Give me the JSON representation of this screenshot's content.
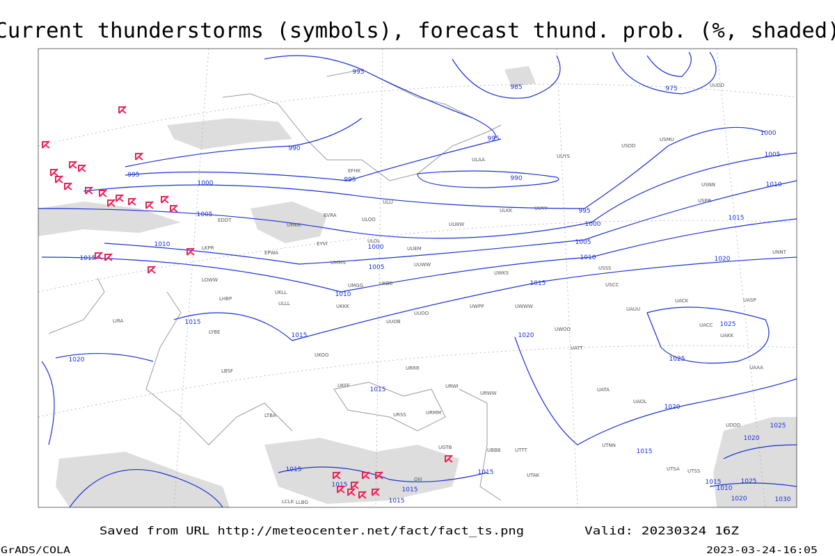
{
  "header": {
    "title": "Current thunderstorms (symbols), forecast thund. prob. (%, shaded)"
  },
  "footer": {
    "source": "Saved from URL http://meteocenter.net/fact/fact_ts.png",
    "valid": "Valid: 20230324 16Z",
    "software": "GrADS/COLA",
    "timestamp": "2023-03-24-16:05"
  },
  "isobar_labels": [
    "995",
    "985",
    "975",
    "990",
    "995",
    "995",
    "1000",
    "995",
    "990",
    "995",
    "1005",
    "1000",
    "1000",
    "1010",
    "1005",
    "1015",
    "1005",
    "1010",
    "1020",
    "1015",
    "1010",
    "1005",
    "1000",
    "1015",
    "1010",
    "1015",
    "1015",
    "1020",
    "1025",
    "1025",
    "1020",
    "1015",
    "1020",
    "1015",
    "1015",
    "1015",
    "1015",
    "1015",
    "1015",
    "1025",
    "1020",
    "1025",
    "1020",
    "1030",
    "1015",
    "1010"
  ],
  "stations": [
    "ULLI",
    "ULOO",
    "EFHK",
    "ULAA",
    "UUYY",
    "ULKK",
    "UUYS",
    "USDD",
    "USMU",
    "ULWW",
    "UUEM",
    "UMMS",
    "UMGG",
    "UKBB",
    "UKKK",
    "UUOO",
    "UUWW",
    "UWPP",
    "UWWW",
    "UWKS",
    "URWW",
    "URWI",
    "UATT",
    "UACC",
    "UAKK",
    "UAAA",
    "URRR",
    "URMM",
    "UGTB",
    "UBBB",
    "UTTT",
    "LLBG",
    "LTBA",
    "LBSF",
    "LYBE",
    "LIRA",
    "EPWA",
    "EDDT",
    "LKPR",
    "LOWW",
    "LHBP",
    "UKLL",
    "UKOO",
    "UKFF",
    "UUOB",
    "USSS",
    "USCC",
    "UAUU",
    "UACK",
    "UASP",
    "UNNT",
    "USNN",
    "USRR",
    "URSS",
    "UDDD",
    "UTAK",
    "UTSS",
    "OIII",
    "LCLK",
    "EVRA",
    "EYVI",
    "UMKK",
    "ULOL",
    "ULLL",
    "UUDD",
    "UWOO",
    "UATA",
    "UAOL",
    "UTSA",
    "UTNN"
  ]
}
